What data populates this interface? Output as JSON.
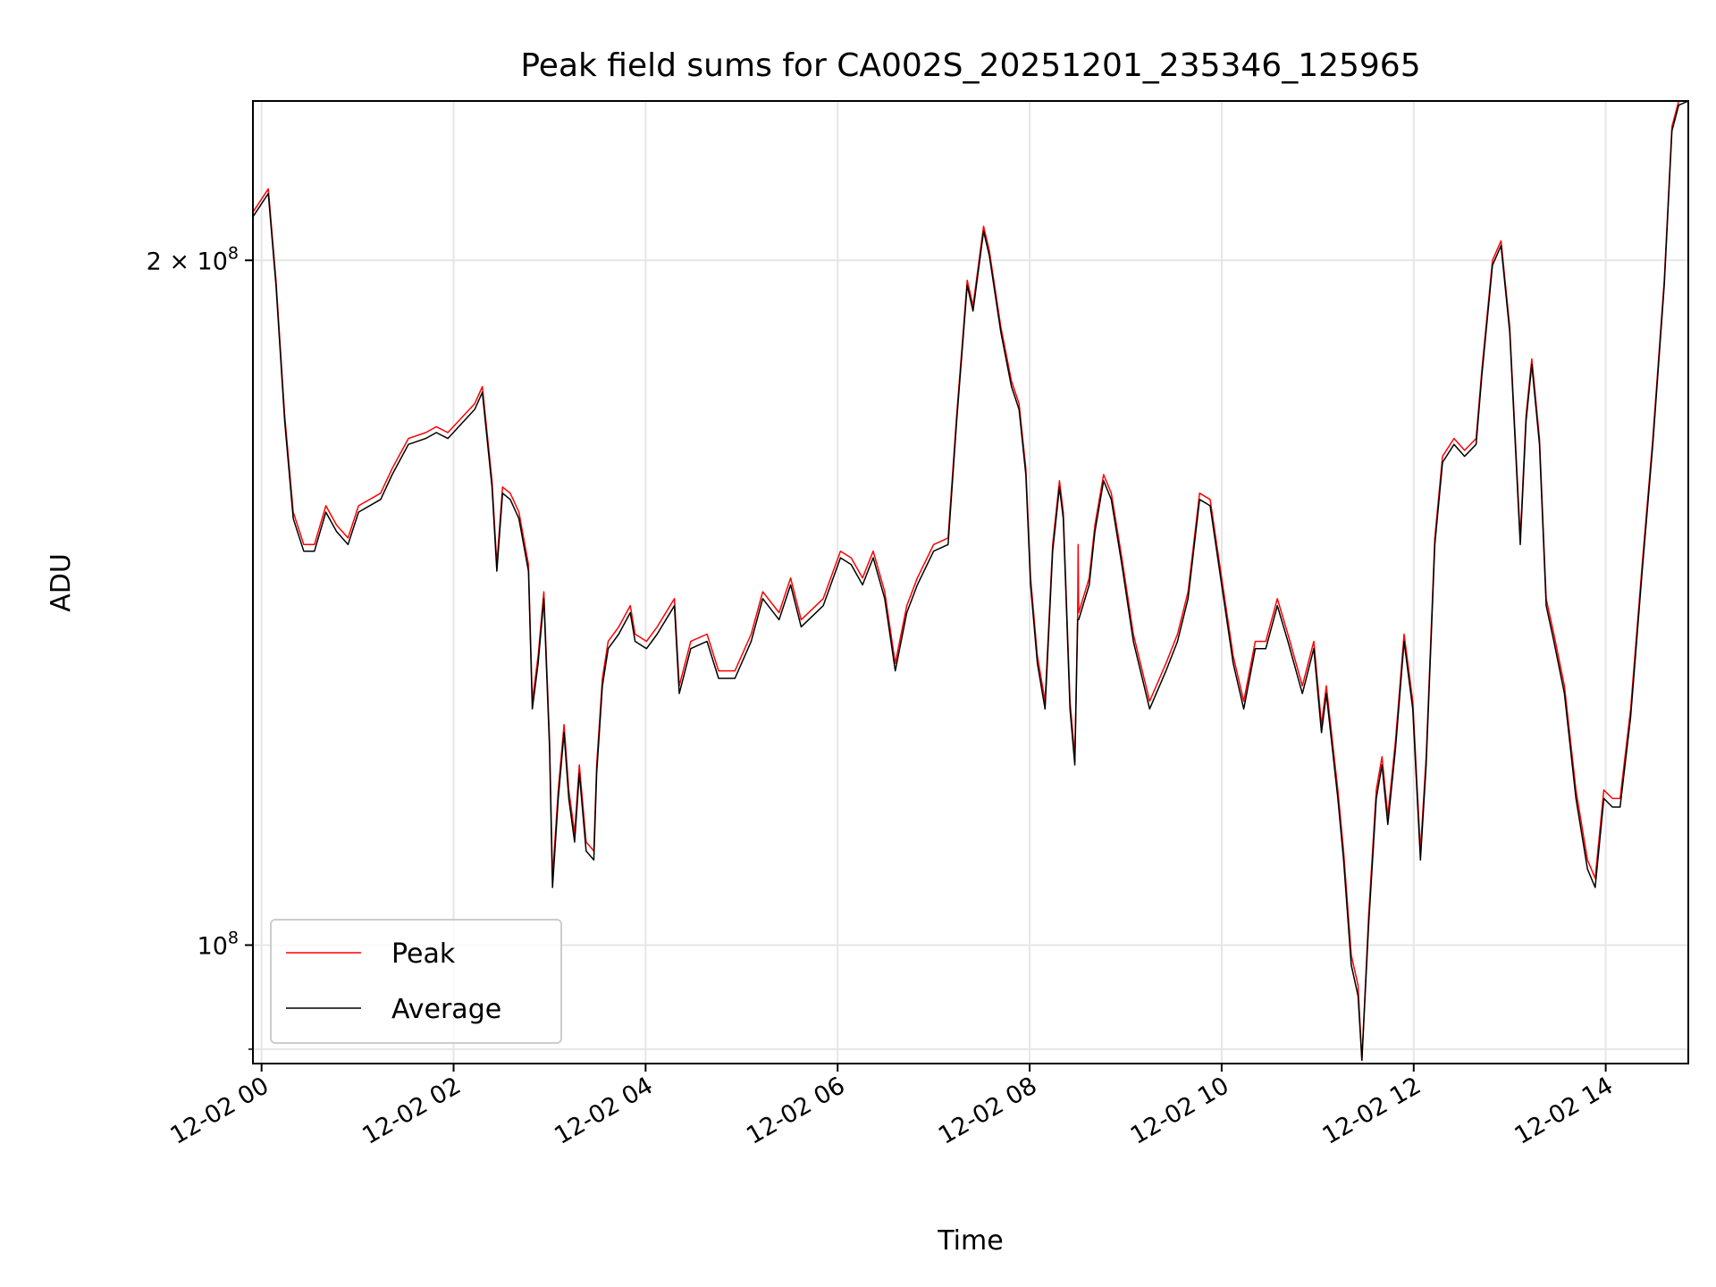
{
  "chart_data": {
    "type": "line",
    "title": "Peak field sums for CA002S_20251201_235346_125965",
    "xlabel": "Time",
    "ylabel": "ADU",
    "x_unit": "hours since 12-02 00:00",
    "y_unit": "millions of ADU",
    "yscale": "log",
    "xlim": [
      -0.09,
      14.86
    ],
    "ylim": [
      88.7,
      235
    ],
    "grid": true,
    "legend_position": "lower-left",
    "x_ticks": [
      {
        "value": 0,
        "label": "12-02 00"
      },
      {
        "value": 2,
        "label": "12-02 02"
      },
      {
        "value": 4,
        "label": "12-02 04"
      },
      {
        "value": 6,
        "label": "12-02 06"
      },
      {
        "value": 8,
        "label": "12-02 08"
      },
      {
        "value": 10,
        "label": "12-02 10"
      },
      {
        "value": 12,
        "label": "12-02 12"
      },
      {
        "value": 14,
        "label": "12-02 14"
      }
    ],
    "y_ticks": [
      {
        "value": 100,
        "base": "10",
        "exp": "8",
        "mantissa": ""
      },
      {
        "value": 200,
        "base": "10",
        "exp": "8",
        "mantissa": "2 × "
      }
    ],
    "y_minor_ticks": [
      90
    ],
    "series": [
      {
        "name": "Peak",
        "color": "#ff0000",
        "x": [
          -0.09,
          0.07,
          0.15,
          0.24,
          0.33,
          0.44,
          0.55,
          0.67,
          0.78,
          0.9,
          1.01,
          1.24,
          1.36,
          1.53,
          1.71,
          1.82,
          1.94,
          2.11,
          2.22,
          2.3,
          2.4,
          2.45,
          2.51,
          2.59,
          2.68,
          2.78,
          2.82,
          2.88,
          2.94,
          3.0,
          3.03,
          3.09,
          3.15,
          3.2,
          3.26,
          3.31,
          3.38,
          3.46,
          3.49,
          3.55,
          3.61,
          3.72,
          3.84,
          3.89,
          4.01,
          4.12,
          4.3,
          4.35,
          4.47,
          4.64,
          4.76,
          4.93,
          5.1,
          5.22,
          5.39,
          5.51,
          5.62,
          5.85,
          6.03,
          6.14,
          6.26,
          6.37,
          6.49,
          6.6,
          6.72,
          6.83,
          7.0,
          7.15,
          7.24,
          7.35,
          7.41,
          7.52,
          7.58,
          7.7,
          7.81,
          7.89,
          7.96,
          8.01,
          8.08,
          8.16,
          8.24,
          8.31,
          8.35,
          8.42,
          8.47,
          8.5,
          8.505,
          8.51,
          8.62,
          8.68,
          8.77,
          8.85,
          8.96,
          9.08,
          9.25,
          9.42,
          9.54,
          9.65,
          9.77,
          9.88,
          10.0,
          10.12,
          10.23,
          10.35,
          10.46,
          10.58,
          10.69,
          10.84,
          10.96,
          11.04,
          11.09,
          11.21,
          11.27,
          11.35,
          11.42,
          11.46,
          11.53,
          11.61,
          11.67,
          11.73,
          11.81,
          11.9,
          11.99,
          12.07,
          12.13,
          12.22,
          12.3,
          12.42,
          12.53,
          12.65,
          12.71,
          12.82,
          12.91,
          13.0,
          13.11,
          13.17,
          13.23,
          13.31,
          13.38,
          13.46,
          13.57,
          13.69,
          13.81,
          13.89,
          13.98,
          14.07,
          14.15,
          14.26,
          14.38,
          14.49,
          14.61,
          14.69,
          14.76,
          14.86
        ],
        "values": [
          210,
          215,
          196,
          171,
          155,
          150,
          150,
          156,
          153,
          151,
          156,
          158,
          162,
          167,
          168,
          169,
          168,
          171,
          173,
          176,
          160,
          147,
          159,
          158,
          155,
          147,
          128,
          134,
          143,
          123,
          107,
          117,
          125,
          117,
          112,
          120,
          111,
          110,
          120,
          131,
          136,
          138,
          141,
          137,
          136,
          138,
          142,
          130,
          136,
          137,
          132,
          132,
          137,
          143,
          140,
          145,
          139,
          142,
          149,
          148,
          145,
          149,
          143,
          133,
          141,
          145,
          150,
          151,
          171,
          196,
          191,
          207,
          202,
          187,
          177,
          173,
          162,
          145,
          134,
          128,
          150,
          160,
          155,
          128,
          121,
          140,
          150,
          140,
          145,
          153,
          161,
          158,
          148,
          137,
          128,
          133,
          137,
          143,
          158,
          157,
          145,
          134,
          128,
          136,
          136,
          142,
          137,
          130,
          136,
          125,
          130,
          117,
          110,
          99,
          96,
          89,
          103,
          117,
          121,
          114,
          123,
          137,
          128,
          110,
          121,
          151,
          164,
          167,
          165,
          167,
          179,
          200,
          204,
          187,
          151,
          171,
          181,
          167,
          142,
          137,
          130,
          117,
          109,
          107,
          117,
          116,
          116,
          127,
          147,
          167,
          196,
          229,
          235,
          235
        ]
      },
      {
        "name": "Average",
        "color": "#000000",
        "x": [
          -0.09,
          0.07,
          0.15,
          0.24,
          0.33,
          0.44,
          0.55,
          0.67,
          0.78,
          0.9,
          1.01,
          1.24,
          1.36,
          1.53,
          1.71,
          1.82,
          1.94,
          2.11,
          2.22,
          2.3,
          2.4,
          2.45,
          2.51,
          2.59,
          2.68,
          2.78,
          2.82,
          2.88,
          2.94,
          3.0,
          3.03,
          3.09,
          3.15,
          3.2,
          3.26,
          3.31,
          3.38,
          3.46,
          3.49,
          3.55,
          3.61,
          3.72,
          3.84,
          3.89,
          4.01,
          4.12,
          4.3,
          4.35,
          4.47,
          4.64,
          4.76,
          4.93,
          5.1,
          5.22,
          5.39,
          5.51,
          5.62,
          5.85,
          6.03,
          6.14,
          6.26,
          6.37,
          6.49,
          6.6,
          6.72,
          6.83,
          7.0,
          7.15,
          7.24,
          7.35,
          7.41,
          7.52,
          7.58,
          7.7,
          7.81,
          7.89,
          7.96,
          8.01,
          8.08,
          8.16,
          8.24,
          8.31,
          8.35,
          8.42,
          8.47,
          8.5,
          8.505,
          8.51,
          8.62,
          8.68,
          8.77,
          8.85,
          8.96,
          9.08,
          9.25,
          9.42,
          9.54,
          9.65,
          9.77,
          9.88,
          10.0,
          10.12,
          10.23,
          10.35,
          10.46,
          10.58,
          10.69,
          10.84,
          10.96,
          11.04,
          11.09,
          11.21,
          11.27,
          11.35,
          11.42,
          11.46,
          11.53,
          11.61,
          11.67,
          11.73,
          11.81,
          11.9,
          11.99,
          12.07,
          12.13,
          12.22,
          12.3,
          12.42,
          12.53,
          12.65,
          12.71,
          12.82,
          12.91,
          13.0,
          13.11,
          13.17,
          13.23,
          13.31,
          13.38,
          13.46,
          13.57,
          13.69,
          13.81,
          13.89,
          13.98,
          14.07,
          14.15,
          14.26,
          14.38,
          14.49,
          14.61,
          14.69,
          14.76,
          14.86
        ],
        "values": [
          209,
          214,
          195,
          170,
          154,
          149,
          149,
          155,
          152,
          150,
          155,
          157,
          161,
          166,
          167,
          168,
          167,
          170,
          172,
          175,
          159,
          146,
          158,
          157,
          154,
          146,
          127,
          133,
          142,
          122,
          106,
          116,
          124,
          116,
          111,
          119,
          110,
          109,
          119,
          130,
          135,
          137,
          140,
          136,
          135,
          137,
          141,
          129,
          135,
          136,
          131,
          131,
          136,
          142,
          139,
          144,
          138,
          141,
          148,
          147,
          144,
          148,
          142,
          132,
          140,
          144,
          149,
          150,
          170,
          195,
          190,
          206,
          201,
          186,
          176,
          172,
          161,
          144,
          133,
          127,
          149,
          159,
          154,
          127,
          120,
          139,
          139,
          139,
          144,
          152,
          160,
          157,
          147,
          136,
          127,
          132,
          136,
          142,
          157,
          156,
          144,
          133,
          127,
          135,
          135,
          141,
          136,
          129,
          135,
          124,
          129,
          116,
          109,
          98,
          95,
          89,
          102,
          116,
          120,
          113,
          122,
          136,
          127,
          109,
          120,
          150,
          163,
          166,
          164,
          166,
          178,
          199,
          203,
          186,
          150,
          170,
          180,
          166,
          141,
          136,
          129,
          116,
          108,
          106,
          116,
          115,
          115,
          126,
          146,
          166,
          195,
          228,
          234,
          235
        ]
      }
    ]
  }
}
